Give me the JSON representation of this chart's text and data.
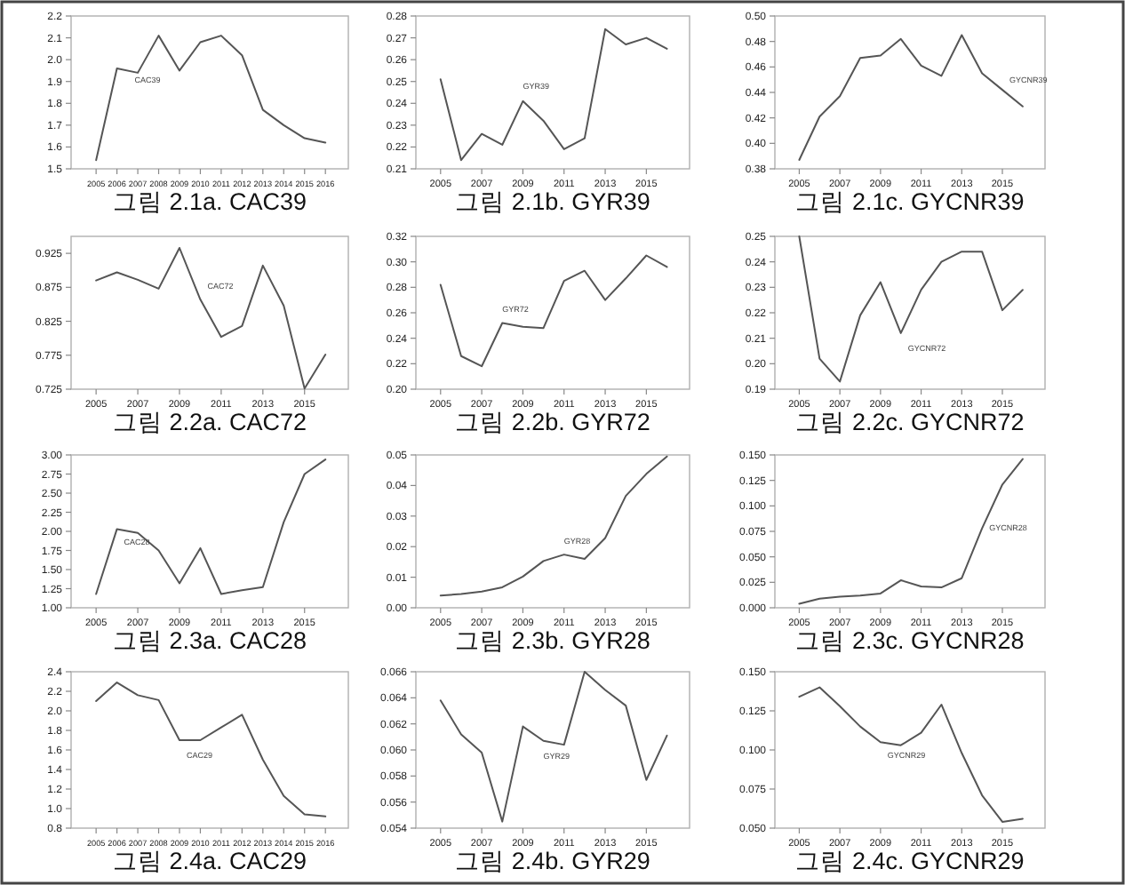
{
  "chart_data": [
    {
      "type": "line",
      "title": "그림 2.1a. CAC39",
      "x": [
        2005,
        2006,
        2007,
        2008,
        2009,
        2010,
        2011,
        2012,
        2013,
        2014,
        2015,
        2016
      ],
      "xlim": [
        2003.8,
        2017.1
      ],
      "xticks": [
        2005,
        2006,
        2007,
        2008,
        2009,
        2010,
        2011,
        2012,
        2013,
        2014,
        2015,
        2016
      ],
      "ylim": [
        1.5,
        2.2
      ],
      "yticks": [
        1.5,
        1.6,
        1.7,
        1.8,
        1.9,
        {
          "value": 2.0,
          "label": "2.0"
        },
        2.1,
        2.2
      ],
      "series": [
        {
          "name": "CAC39",
          "color": "#555555",
          "values": [
            1.54,
            1.96,
            1.94,
            2.11,
            1.95,
            2.08,
            2.11,
            2.02,
            1.77,
            1.7,
            1.64,
            1.62
          ]
        }
      ]
    },
    {
      "type": "line",
      "title": "그림 2.1b. GYR39",
      "x": [
        2005,
        2006,
        2007,
        2008,
        2009,
        2010,
        2011,
        2012,
        2013,
        2014,
        2015,
        2016
      ],
      "xlim": [
        2003.8,
        2017.1
      ],
      "xticks": [
        2005,
        2007,
        2009,
        2011,
        2013,
        2015
      ],
      "ylim": [
        0.21,
        0.28
      ],
      "yticks": [
        0.21,
        0.22,
        0.23,
        0.24,
        0.25,
        0.26,
        0.27,
        0.28
      ],
      "series": [
        {
          "name": "GYR39",
          "color": "#555555",
          "values": [
            0.251,
            0.214,
            0.226,
            0.221,
            0.241,
            0.232,
            0.219,
            0.224,
            0.274,
            0.267,
            0.27,
            0.265
          ]
        }
      ]
    },
    {
      "type": "line",
      "title": "그림 2.1c. GYCNR39",
      "x": [
        2005,
        2006,
        2007,
        2008,
        2009,
        2010,
        2011,
        2012,
        2013,
        2014,
        2015,
        2016
      ],
      "xlim": [
        2003.8,
        2017.1
      ],
      "xticks": [
        2005,
        2007,
        2009,
        2011,
        2013,
        2015
      ],
      "ylim": [
        0.38,
        0.5
      ],
      "yticks": [
        {
          "value": 0.38,
          "label": "0.38"
        },
        {
          "value": 0.4,
          "label": "0.40"
        },
        0.42,
        0.44,
        0.46,
        0.48,
        {
          "value": 0.5,
          "label": "0.50"
        }
      ],
      "series": [
        {
          "name": "GYCNR39",
          "color": "#555555",
          "values": [
            0.387,
            0.421,
            0.437,
            0.467,
            0.469,
            0.482,
            0.461,
            0.453,
            0.485,
            0.455,
            0.442,
            0.429
          ]
        }
      ]
    },
    {
      "type": "line",
      "title": "그림 2.2a. CAC72",
      "x": [
        2005,
        2006,
        2007,
        2008,
        2009,
        2010,
        2011,
        2012,
        2013,
        2014,
        2015,
        2016
      ],
      "xlim": [
        2003.8,
        2017.1
      ],
      "xticks": [
        2005,
        2007,
        2009,
        2011,
        2013,
        2015
      ],
      "ylim": [
        0.725,
        0.95
      ],
      "yticks": [
        0.725,
        0.775,
        0.825,
        0.875,
        0.925
      ],
      "series": [
        {
          "name": "CAC72",
          "color": "#555555",
          "values": [
            0.885,
            0.897,
            0.886,
            0.873,
            0.933,
            0.857,
            0.802,
            0.818,
            0.907,
            0.848,
            0.726,
            0.776
          ]
        }
      ]
    },
    {
      "type": "line",
      "title": "그림 2.2b. GYR72",
      "x": [
        2005,
        2006,
        2007,
        2008,
        2009,
        2010,
        2011,
        2012,
        2013,
        2014,
        2015,
        2016
      ],
      "xlim": [
        2003.8,
        2017.1
      ],
      "xticks": [
        2005,
        2007,
        2009,
        2011,
        2013,
        2015
      ],
      "ylim": [
        0.2,
        0.32
      ],
      "yticks": [
        {
          "value": 0.2,
          "label": "0.20"
        },
        0.22,
        0.24,
        0.26,
        0.28,
        {
          "value": 0.3,
          "label": "0.30"
        },
        0.32
      ],
      "series": [
        {
          "name": "GYR72",
          "color": "#555555",
          "values": [
            0.282,
            0.226,
            0.218,
            0.252,
            0.249,
            0.248,
            0.285,
            0.293,
            0.27,
            0.287,
            0.305,
            0.296
          ]
        }
      ]
    },
    {
      "type": "line",
      "title": "그림 2.2c. GYCNR72",
      "x": [
        2005,
        2006,
        2007,
        2008,
        2009,
        2010,
        2011,
        2012,
        2013,
        2014,
        2015,
        2016
      ],
      "xlim": [
        2003.8,
        2017.1
      ],
      "xticks": [
        2005,
        2007,
        2009,
        2011,
        2013,
        2015
      ],
      "ylim": [
        0.19,
        0.25
      ],
      "yticks": [
        0.19,
        {
          "value": 0.2,
          "label": "0.20"
        },
        0.21,
        0.22,
        0.23,
        0.24,
        0.25
      ],
      "series": [
        {
          "name": "GYCNR72",
          "color": "#555555",
          "values": [
            0.25,
            0.202,
            0.193,
            0.219,
            0.232,
            0.212,
            0.229,
            0.24,
            0.244,
            0.244,
            0.221,
            0.229
          ]
        }
      ]
    },
    {
      "type": "line",
      "title": "그림 2.3a. CAC28",
      "x": [
        2005,
        2006,
        2007,
        2008,
        2009,
        2010,
        2011,
        2012,
        2013,
        2014,
        2015,
        2016
      ],
      "xlim": [
        2003.8,
        2017.1
      ],
      "xticks": [
        2005,
        2007,
        2009,
        2011,
        2013,
        2015
      ],
      "ylim": [
        1.0,
        3.0
      ],
      "yticks": [
        {
          "value": 1.0,
          "label": "1.00"
        },
        1.25,
        {
          "value": 1.5,
          "label": "1.50"
        },
        1.75,
        {
          "value": 2.0,
          "label": "2.00"
        },
        2.25,
        {
          "value": 2.5,
          "label": "2.50"
        },
        2.75,
        {
          "value": 3.0,
          "label": "3.00"
        }
      ],
      "series": [
        {
          "name": "CAC28",
          "color": "#555555",
          "values": [
            1.18,
            2.03,
            1.98,
            1.75,
            1.32,
            1.78,
            1.18,
            1.23,
            1.27,
            2.12,
            2.75,
            2.94
          ]
        }
      ]
    },
    {
      "type": "line",
      "title": "그림 2.3b. GYR28",
      "x": [
        2005,
        2006,
        2007,
        2008,
        2009,
        2010,
        2011,
        2012,
        2013,
        2014,
        2015,
        2016
      ],
      "xlim": [
        2003.8,
        2017.1
      ],
      "xticks": [
        2005,
        2007,
        2009,
        2011,
        2013,
        2015
      ],
      "ylim": [
        0,
        0.05
      ],
      "yticks": [
        {
          "value": 0,
          "label": "0.00"
        },
        0.01,
        0.02,
        0.03,
        0.04,
        0.05
      ],
      "series": [
        {
          "name": "GYR28",
          "color": "#555555",
          "values": [
            0.004,
            0.0045,
            0.0053,
            0.0067,
            0.0102,
            0.0153,
            0.0174,
            0.016,
            0.0228,
            0.0366,
            0.0438,
            0.0495
          ]
        }
      ]
    },
    {
      "type": "line",
      "title": "그림 2.3c. GYCNR28",
      "x": [
        2005,
        2006,
        2007,
        2008,
        2009,
        2010,
        2011,
        2012,
        2013,
        2014,
        2015,
        2016
      ],
      "xlim": [
        2003.8,
        2017.1
      ],
      "xticks": [
        2005,
        2007,
        2009,
        2011,
        2013,
        2015
      ],
      "ylim": [
        0,
        0.15
      ],
      "yticks": [
        {
          "value": 0,
          "label": "0.000"
        },
        0.025,
        {
          "value": 0.05,
          "label": "0.050"
        },
        0.075,
        {
          "value": 0.1,
          "label": "0.100"
        },
        0.125,
        {
          "value": 0.15,
          "label": "0.150"
        }
      ],
      "series": [
        {
          "name": "GYCNR28",
          "color": "#555555",
          "values": [
            0.004,
            0.009,
            0.011,
            0.012,
            0.014,
            0.027,
            0.021,
            0.02,
            0.029,
            0.078,
            0.121,
            0.146
          ]
        }
      ]
    },
    {
      "type": "line",
      "title": "그림 2.4a. CAC29",
      "x": [
        2005,
        2006,
        2007,
        2008,
        2009,
        2010,
        2011,
        2012,
        2013,
        2014,
        2015,
        2016
      ],
      "xlim": [
        2003.8,
        2017.1
      ],
      "xticks": [
        2005,
        2006,
        2007,
        2008,
        2009,
        2010,
        2011,
        2012,
        2013,
        2014,
        2015,
        2016
      ],
      "ylim": [
        0.8,
        2.4
      ],
      "yticks": [
        0.8,
        {
          "value": 1.0,
          "label": "1.0"
        },
        1.2,
        1.4,
        1.6,
        1.8,
        {
          "value": 2.0,
          "label": "2.0"
        },
        2.2,
        2.4
      ],
      "series": [
        {
          "name": "CAC29",
          "color": "#555555",
          "values": [
            2.1,
            2.29,
            2.16,
            2.11,
            1.7,
            1.7,
            1.83,
            1.96,
            1.5,
            1.13,
            0.94,
            0.92
          ]
        }
      ]
    },
    {
      "type": "line",
      "title": "그림 2.4b. GYR29",
      "x": [
        2005,
        2006,
        2007,
        2008,
        2009,
        2010,
        2011,
        2012,
        2013,
        2014,
        2015,
        2016
      ],
      "xlim": [
        2003.8,
        2017.1
      ],
      "xticks": [
        2005,
        2007,
        2009,
        2011,
        2013,
        2015
      ],
      "ylim": [
        0.054,
        0.066
      ],
      "yticks": [
        0.054,
        0.056,
        0.058,
        {
          "value": 0.06,
          "label": "0.060"
        },
        0.062,
        0.064,
        0.066
      ],
      "series": [
        {
          "name": "GYR29",
          "color": "#555555",
          "values": [
            0.0638,
            0.0612,
            0.0598,
            0.0545,
            0.0618,
            0.0607,
            0.0604,
            0.066,
            0.0646,
            0.0634,
            0.0577,
            0.0611
          ]
        }
      ]
    },
    {
      "type": "line",
      "title": "그림 2.4c. GYCNR29",
      "x": [
        2005,
        2006,
        2007,
        2008,
        2009,
        2010,
        2011,
        2012,
        2013,
        2014,
        2015,
        2016
      ],
      "xlim": [
        2003.8,
        2017.1
      ],
      "xticks": [
        2005,
        2007,
        2009,
        2011,
        2013,
        2015
      ],
      "ylim": [
        0.05,
        0.15
      ],
      "yticks": [
        {
          "value": 0.05,
          "label": "0.050"
        },
        0.075,
        {
          "value": 0.1,
          "label": "0.100"
        },
        0.125,
        {
          "value": 0.15,
          "label": "0.150"
        }
      ],
      "series": [
        {
          "name": "GYCNR29",
          "color": "#555555",
          "values": [
            0.134,
            0.14,
            0.128,
            0.115,
            0.105,
            0.103,
            0.111,
            0.129,
            0.098,
            0.071,
            0.054,
            0.056
          ]
        }
      ]
    }
  ]
}
